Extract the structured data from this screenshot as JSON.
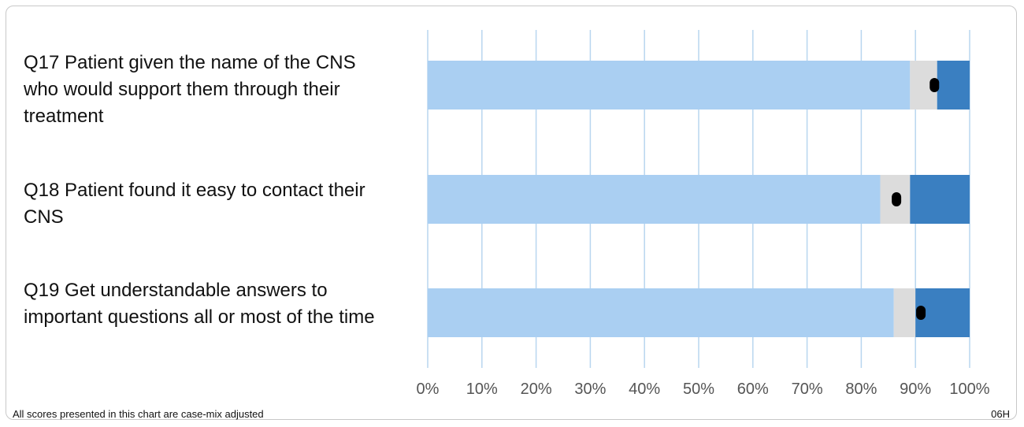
{
  "chart_data": {
    "type": "bar",
    "orientation": "horizontal",
    "stacked": true,
    "categories": [
      "Q17 Patient given the name of the CNS who would support them through their treatment",
      "Q18 Patient found it easy to contact their CNS",
      "Q19 Get understandable answers to important questions all or most of the time"
    ],
    "series": [
      {
        "values": [
          89,
          83.5,
          86
        ],
        "color": "#aacff2"
      },
      {
        "values": [
          5,
          5.5,
          4
        ],
        "color": "#dcdcdc"
      },
      {
        "values": [
          6,
          11,
          10
        ],
        "color": "#3a7fc1"
      }
    ],
    "markers": [
      93.5,
      86.5,
      91
    ],
    "xlim": [
      0,
      100
    ],
    "ticks": [
      "0%",
      "10%",
      "20%",
      "30%",
      "40%",
      "50%",
      "60%",
      "70%",
      "80%",
      "90%",
      "100%"
    ],
    "grid": true,
    "gridline_color": "#b8d6ef",
    "marker_color": "#000000"
  },
  "footnote": "All scores presented in this chart are case-mix adjusted",
  "code": "06H"
}
